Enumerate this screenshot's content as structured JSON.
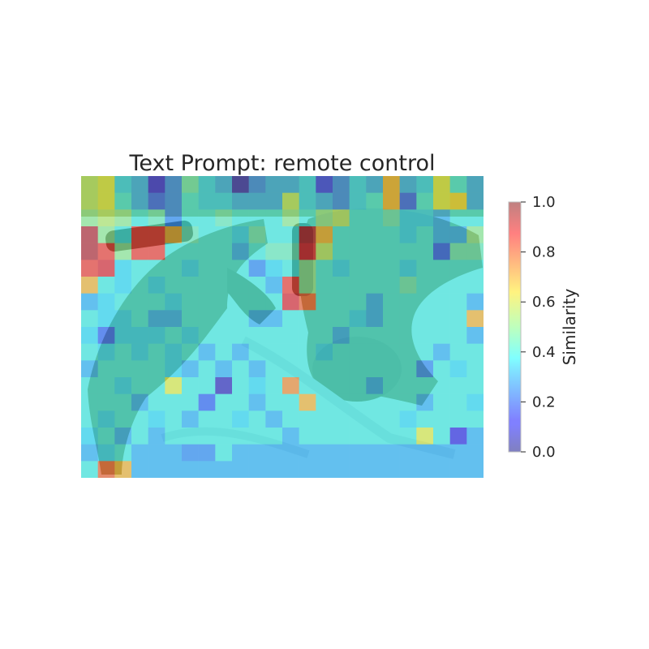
{
  "chart_data": {
    "type": "heatmap",
    "title": "Text Prompt: remote control",
    "rows": 18,
    "cols": 24,
    "colormap": "jet",
    "overlay_alpha": 0.5,
    "vmin": 0.0,
    "vmax": 1.0,
    "colorbar": {
      "label": "Similarity",
      "ticks": [
        "0.0",
        "0.2",
        "0.4",
        "0.6",
        "0.8",
        "1.0"
      ],
      "tick_values": [
        0.0,
        0.2,
        0.4,
        0.6,
        0.8,
        1.0
      ],
      "position": "right"
    },
    "background": "photo of two tabby cats lying on a light blue sheet with two remote controls",
    "values": [
      [
        0.55,
        0.6,
        0.35,
        0.3,
        0.1,
        0.25,
        0.45,
        0.35,
        0.3,
        0.05,
        0.25,
        0.3,
        0.3,
        0.35,
        0.15,
        0.25,
        0.35,
        0.3,
        0.7,
        0.3,
        0.35,
        0.6,
        0.4,
        0.3
      ],
      [
        0.55,
        0.6,
        0.4,
        0.3,
        0.2,
        0.25,
        0.4,
        0.35,
        0.35,
        0.3,
        0.3,
        0.3,
        0.55,
        0.35,
        0.3,
        0.25,
        0.35,
        0.4,
        0.7,
        0.2,
        0.4,
        0.6,
        0.65,
        0.3
      ],
      [
        0.5,
        0.55,
        0.5,
        0.4,
        0.45,
        0.25,
        0.4,
        0.4,
        0.45,
        0.4,
        0.4,
        0.4,
        0.5,
        0.4,
        0.5,
        0.55,
        0.4,
        0.4,
        0.45,
        0.35,
        0.35,
        0.3,
        0.4,
        0.4
      ],
      [
        0.95,
        0.5,
        0.4,
        0.85,
        0.85,
        0.7,
        0.45,
        0.4,
        0.4,
        0.35,
        0.45,
        0.4,
        0.4,
        0.95,
        0.7,
        0.4,
        0.4,
        0.4,
        0.4,
        0.35,
        0.4,
        0.3,
        0.3,
        0.5
      ],
      [
        0.95,
        0.85,
        0.5,
        0.85,
        0.85,
        0.4,
        0.4,
        0.4,
        0.4,
        0.3,
        0.4,
        0.45,
        0.45,
        0.9,
        0.55,
        0.4,
        0.4,
        0.4,
        0.4,
        0.4,
        0.4,
        0.2,
        0.45,
        0.45
      ],
      [
        0.85,
        0.9,
        0.35,
        0.4,
        0.4,
        0.4,
        0.35,
        0.4,
        0.4,
        0.4,
        0.25,
        0.35,
        0.4,
        0.5,
        0.4,
        0.35,
        0.4,
        0.4,
        0.4,
        0.35,
        0.4,
        0.4,
        0.4,
        0.4
      ],
      [
        0.7,
        0.4,
        0.35,
        0.4,
        0.35,
        0.4,
        0.4,
        0.4,
        0.4,
        0.4,
        0.4,
        0.3,
        0.85,
        0.5,
        0.4,
        0.4,
        0.4,
        0.4,
        0.4,
        0.45,
        0.4,
        0.4,
        0.4,
        0.4
      ],
      [
        0.3,
        0.35,
        0.4,
        0.4,
        0.4,
        0.35,
        0.4,
        0.4,
        0.4,
        0.4,
        0.4,
        0.4,
        0.9,
        0.8,
        0.4,
        0.4,
        0.4,
        0.3,
        0.4,
        0.4,
        0.4,
        0.4,
        0.4,
        0.3
      ],
      [
        0.4,
        0.35,
        0.35,
        0.4,
        0.3,
        0.3,
        0.4,
        0.4,
        0.4,
        0.4,
        0.3,
        0.3,
        0.4,
        0.4,
        0.4,
        0.4,
        0.35,
        0.3,
        0.4,
        0.4,
        0.4,
        0.4,
        0.4,
        0.7
      ],
      [
        0.35,
        0.2,
        0.35,
        0.35,
        0.35,
        0.4,
        0.35,
        0.4,
        0.4,
        0.4,
        0.4,
        0.4,
        0.4,
        0.4,
        0.4,
        0.3,
        0.4,
        0.4,
        0.4,
        0.4,
        0.4,
        0.4,
        0.4,
        0.3
      ],
      [
        0.4,
        0.35,
        0.4,
        0.35,
        0.4,
        0.35,
        0.4,
        0.3,
        0.4,
        0.3,
        0.4,
        0.4,
        0.4,
        0.4,
        0.35,
        0.4,
        0.4,
        0.4,
        0.4,
        0.4,
        0.4,
        0.3,
        0.4,
        0.4
      ],
      [
        0.3,
        0.4,
        0.4,
        0.4,
        0.4,
        0.35,
        0.3,
        0.4,
        0.3,
        0.4,
        0.3,
        0.4,
        0.4,
        0.4,
        0.4,
        0.4,
        0.4,
        0.4,
        0.4,
        0.4,
        0.25,
        0.4,
        0.35,
        0.4
      ],
      [
        0.4,
        0.4,
        0.35,
        0.4,
        0.4,
        0.6,
        0.4,
        0.4,
        0.05,
        0.4,
        0.35,
        0.4,
        0.75,
        0.4,
        0.4,
        0.4,
        0.4,
        0.3,
        0.4,
        0.4,
        0.4,
        0.4,
        0.4,
        0.4
      ],
      [
        0.4,
        0.4,
        0.4,
        0.3,
        0.4,
        0.4,
        0.4,
        0.2,
        0.4,
        0.4,
        0.3,
        0.4,
        0.4,
        0.7,
        0.4,
        0.4,
        0.4,
        0.4,
        0.4,
        0.4,
        0.3,
        0.4,
        0.4,
        0.35
      ],
      [
        0.4,
        0.35,
        0.4,
        0.4,
        0.35,
        0.4,
        0.3,
        0.4,
        0.4,
        0.35,
        0.4,
        0.3,
        0.4,
        0.4,
        0.4,
        0.4,
        0.4,
        0.4,
        0.4,
        0.35,
        0.4,
        0.4,
        0.4,
        0.4
      ],
      [
        0.35,
        0.4,
        0.3,
        0.4,
        0.3,
        0.4,
        0.4,
        0.4,
        0.4,
        0.4,
        0.4,
        0.4,
        0.3,
        0.4,
        0.4,
        0.4,
        0.4,
        0.4,
        0.4,
        0.4,
        0.6,
        0.4,
        0.1,
        0.3
      ],
      [
        0.3,
        0.35,
        0.4,
        0.3,
        0.3,
        0.3,
        0.25,
        0.25,
        0.4,
        0.3,
        0.3,
        0.3,
        0.3,
        0.3,
        0.3,
        0.3,
        0.3,
        0.3,
        0.3,
        0.3,
        0.3,
        0.3,
        0.3,
        0.3
      ],
      [
        0.4,
        0.8,
        0.7,
        0.3,
        0.3,
        0.3,
        0.3,
        0.3,
        0.3,
        0.3,
        0.3,
        0.3,
        0.3,
        0.3,
        0.3,
        0.3,
        0.3,
        0.3,
        0.3,
        0.3,
        0.3,
        0.3,
        0.3,
        0.3
      ]
    ]
  }
}
